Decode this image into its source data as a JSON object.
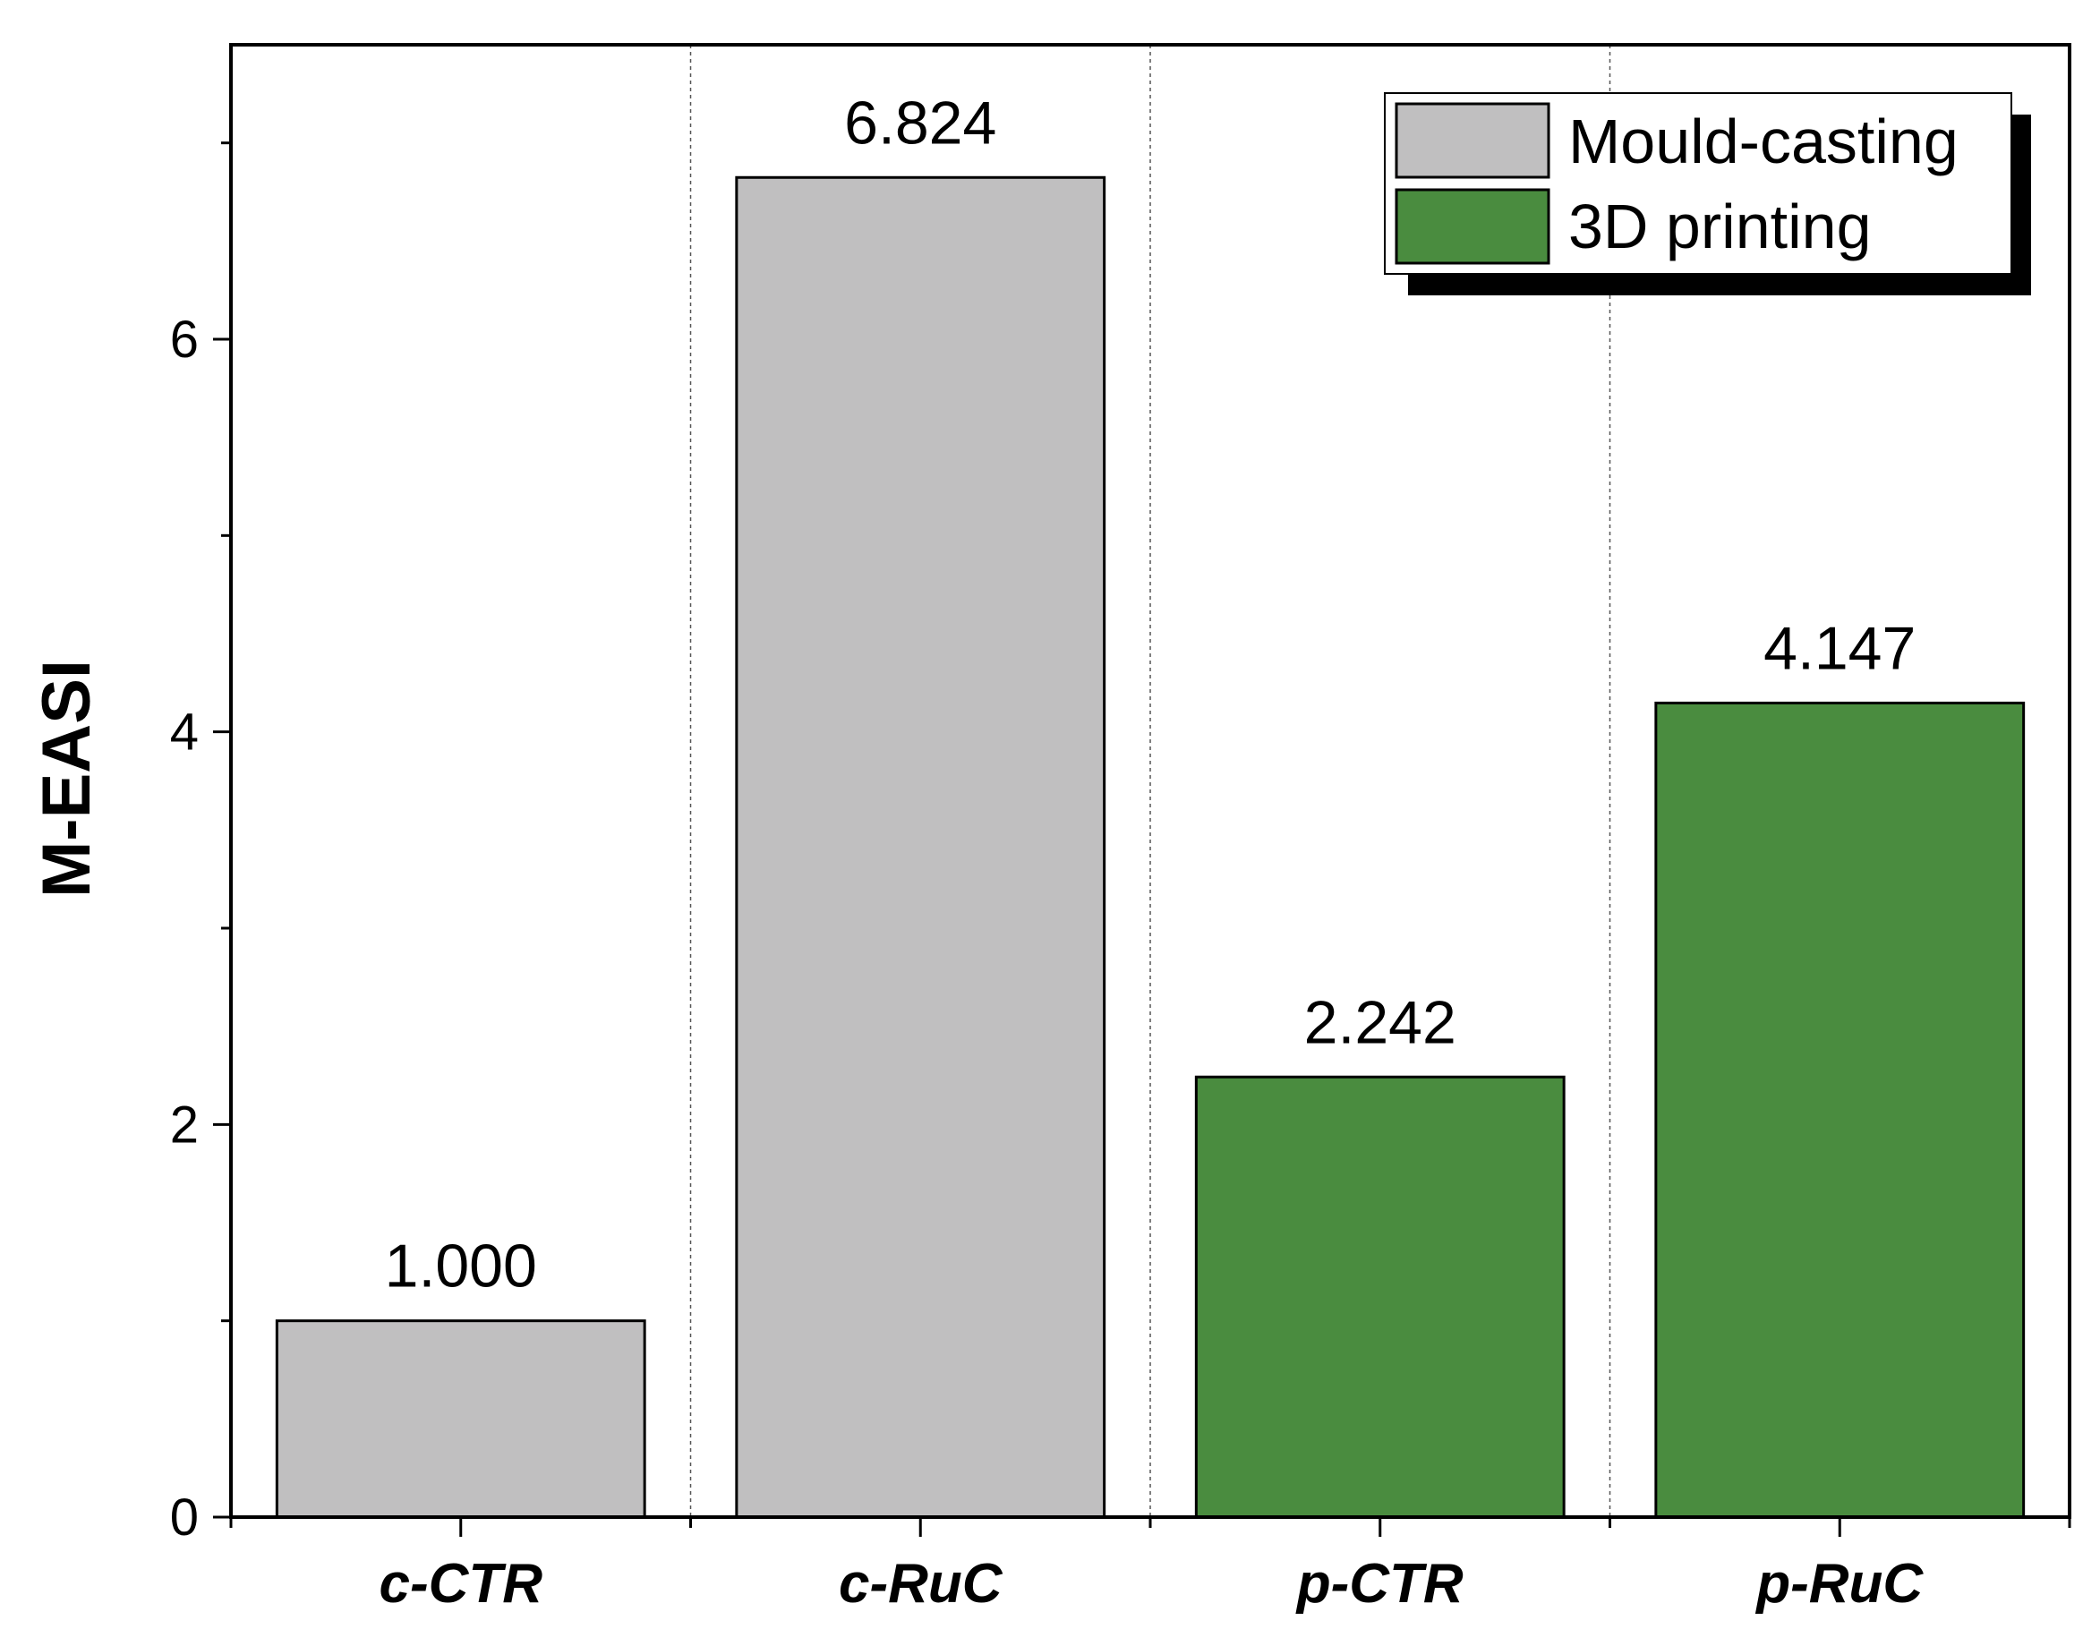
{
  "chart_data": {
    "type": "bar",
    "categories": [
      "c-CTR",
      "c-RuC",
      "p-CTR",
      "p-RuC"
    ],
    "values": [
      1.0,
      6.824,
      2.242,
      4.147
    ],
    "data_labels": [
      "1.000",
      "6.824",
      "2.242",
      "4.147"
    ],
    "bar_series": [
      "Mould-casting",
      "Mould-casting",
      "3D printing",
      "3D printing"
    ],
    "series": [
      {
        "name": "Mould-casting",
        "color": "#c0bfc0"
      },
      {
        "name": "3D printing",
        "color": "#4a8c3f"
      }
    ],
    "ylabel": "M-EASI",
    "xlabel": "",
    "ylim": [
      0,
      7.5
    ],
    "yticks": [
      0,
      2,
      4,
      6
    ],
    "yticks_minor": [
      1,
      3,
      5,
      7
    ],
    "grid": false,
    "category_separators": "dashed-vertical",
    "legend_position": "top-right"
  }
}
